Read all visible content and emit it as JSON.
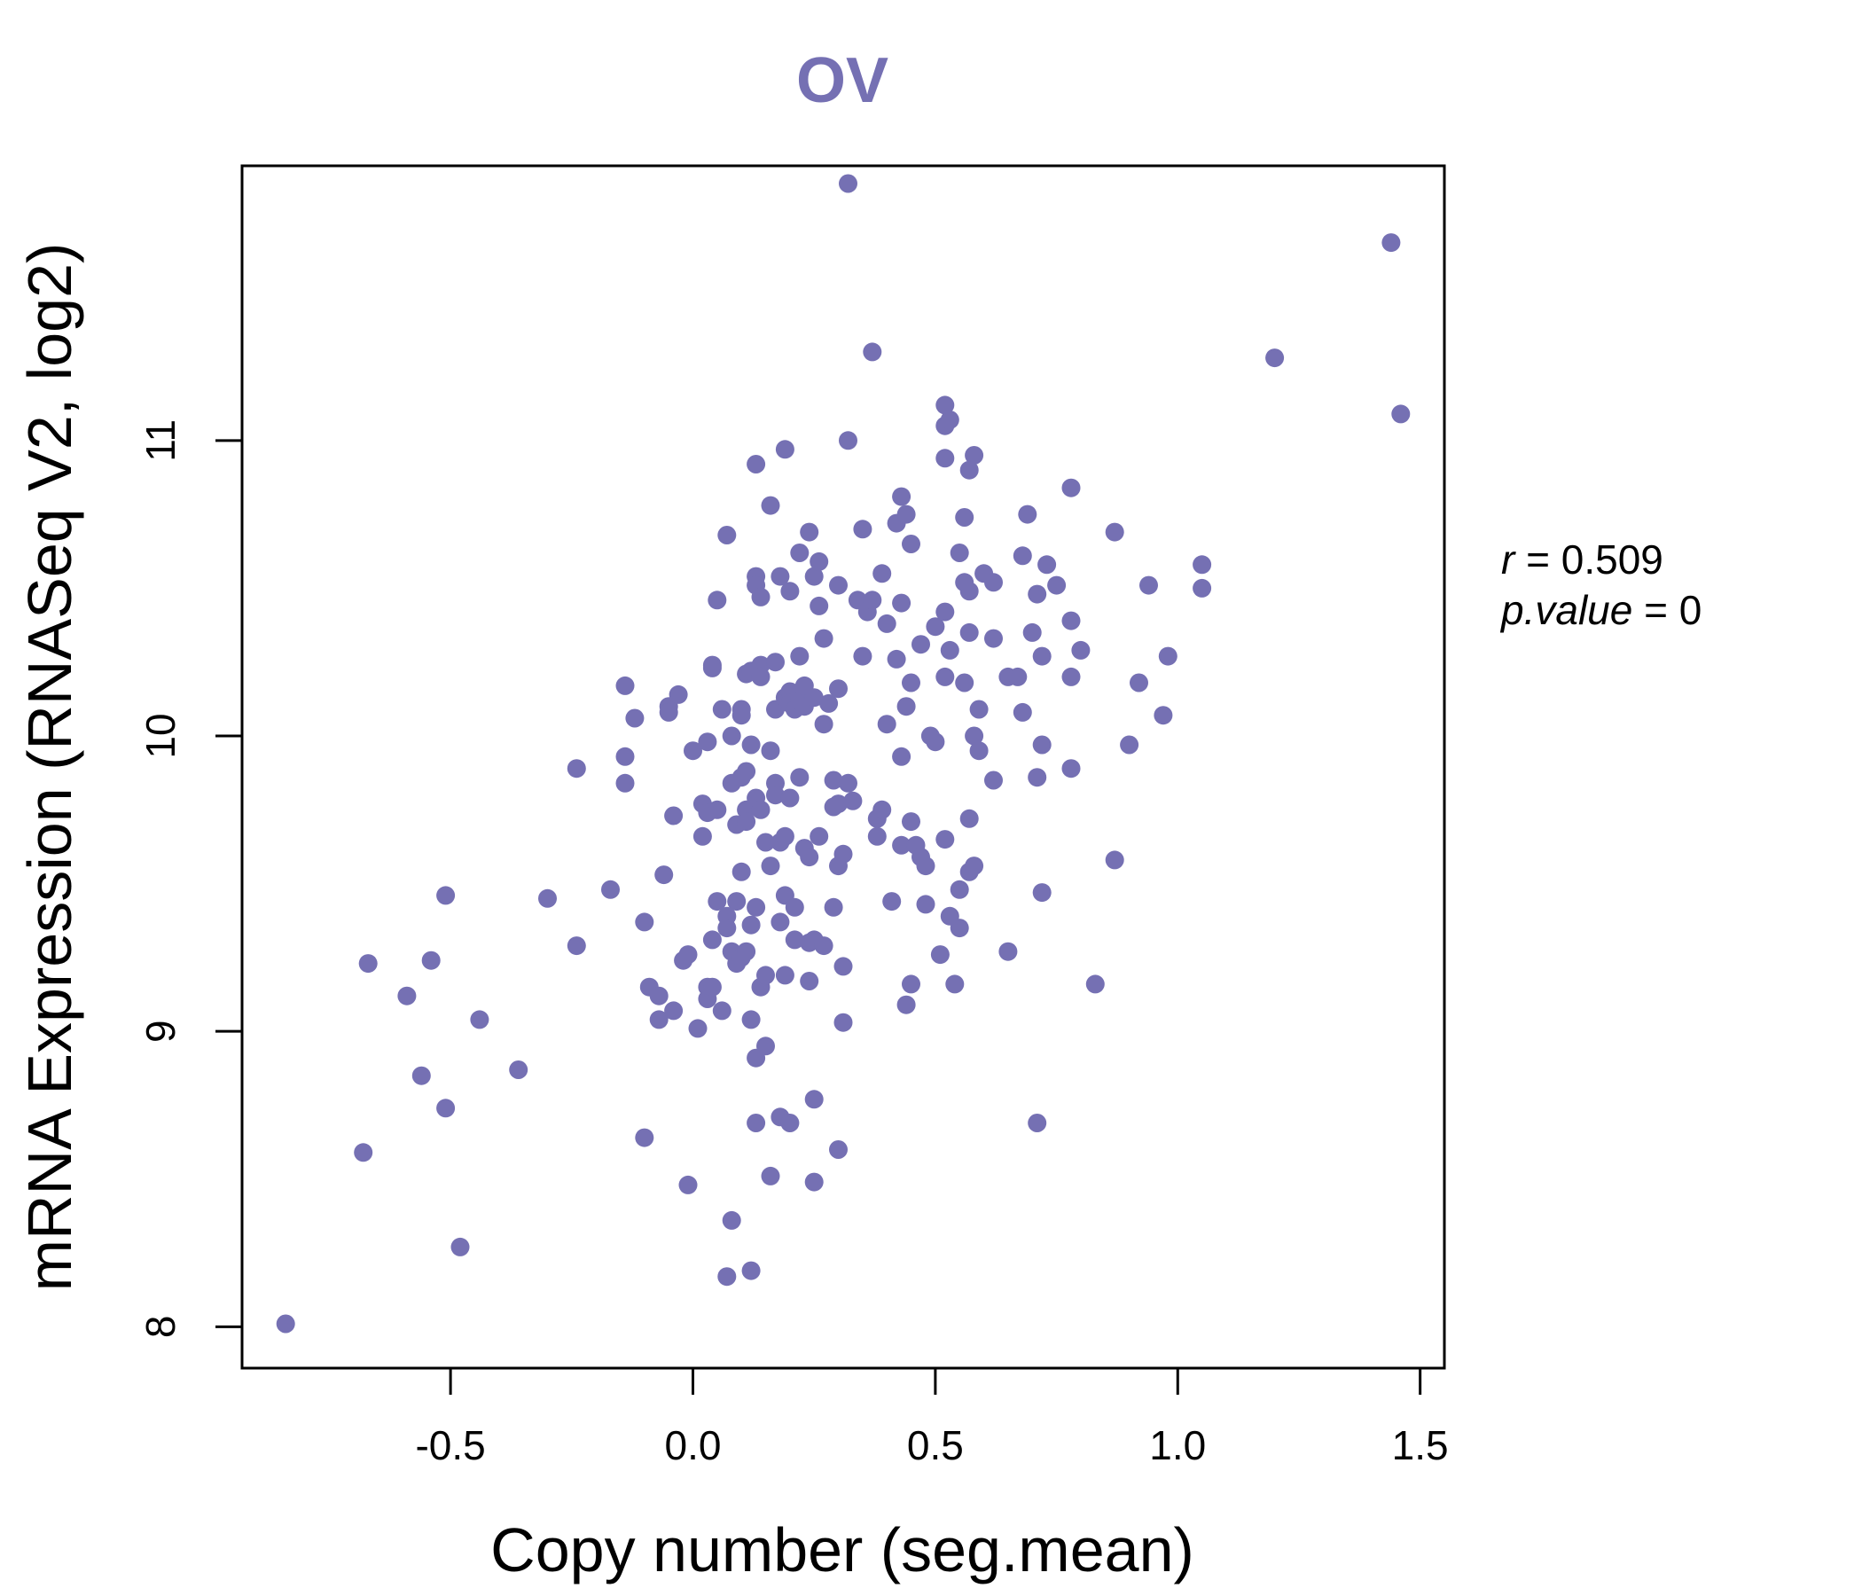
{
  "chart_data": {
    "type": "scatter",
    "title": "OV",
    "xlabel": "Copy number (seg.mean)",
    "ylabel": "mRNA Expression (RNASeq V2, log2)",
    "xlim": [
      -0.93,
      1.55
    ],
    "ylim": [
      7.86,
      11.93
    ],
    "x_ticks": [
      "-0.5",
      "0.0",
      "0.5",
      "1.0",
      "1.5"
    ],
    "x_tick_values": [
      -0.5,
      0.0,
      0.5,
      1.0,
      1.5
    ],
    "y_ticks": [
      "8",
      "9",
      "10",
      "11"
    ],
    "y_tick_values": [
      8,
      9,
      10,
      11
    ],
    "grid": false,
    "point_color": "#7570b3",
    "title_color": "#7570b3",
    "stats": {
      "r_label": "r",
      "r_value": "0.509",
      "p_label": "p.value",
      "p_value": "0"
    },
    "points": [
      [
        -0.84,
        8.01
      ],
      [
        -0.68,
        8.59
      ],
      [
        -0.67,
        9.23
      ],
      [
        -0.59,
        9.12
      ],
      [
        -0.56,
        8.85
      ],
      [
        -0.54,
        9.24
      ],
      [
        -0.51,
        9.46
      ],
      [
        -0.51,
        8.74
      ],
      [
        -0.48,
        8.27
      ],
      [
        -0.44,
        9.04
      ],
      [
        -0.36,
        8.87
      ],
      [
        -0.3,
        9.45
      ],
      [
        -0.24,
        9.89
      ],
      [
        -0.24,
        9.29
      ],
      [
        -0.17,
        9.48
      ],
      [
        -0.14,
        10.17
      ],
      [
        -0.14,
        9.93
      ],
      [
        -0.14,
        9.84
      ],
      [
        -0.12,
        10.06
      ],
      [
        -0.1,
        9.37
      ],
      [
        -0.1,
        8.64
      ],
      [
        -0.09,
        9.15
      ],
      [
        -0.07,
        9.12
      ],
      [
        -0.07,
        9.04
      ],
      [
        -0.06,
        9.53
      ],
      [
        -0.05,
        10.1
      ],
      [
        -0.05,
        10.08
      ],
      [
        -0.04,
        9.73
      ],
      [
        -0.04,
        9.07
      ],
      [
        -0.03,
        10.14
      ],
      [
        -0.02,
        9.24
      ],
      [
        -0.01,
        8.48
      ],
      [
        -0.01,
        9.26
      ],
      [
        0.01,
        9.01
      ],
      [
        0.0,
        9.95
      ],
      [
        0.02,
        9.77
      ],
      [
        0.02,
        9.66
      ],
      [
        0.03,
        9.98
      ],
      [
        0.03,
        9.74
      ],
      [
        0.03,
        9.15
      ],
      [
        0.03,
        9.11
      ],
      [
        0.04,
        10.24
      ],
      [
        0.04,
        10.23
      ],
      [
        0.04,
        9.31
      ],
      [
        0.04,
        9.15
      ],
      [
        0.05,
        10.46
      ],
      [
        0.05,
        9.75
      ],
      [
        0.05,
        9.44
      ],
      [
        0.06,
        10.09
      ],
      [
        0.06,
        9.07
      ],
      [
        0.07,
        10.68
      ],
      [
        0.07,
        9.39
      ],
      [
        0.07,
        9.35
      ],
      [
        0.07,
        8.17
      ],
      [
        0.08,
        10.0
      ],
      [
        0.08,
        9.84
      ],
      [
        0.08,
        9.27
      ],
      [
        0.08,
        8.36
      ],
      [
        0.09,
        9.7
      ],
      [
        0.09,
        9.44
      ],
      [
        0.09,
        9.23
      ],
      [
        0.1,
        10.09
      ],
      [
        0.1,
        10.07
      ],
      [
        0.1,
        9.86
      ],
      [
        0.1,
        9.54
      ],
      [
        0.1,
        9.25
      ],
      [
        0.11,
        10.21
      ],
      [
        0.11,
        9.88
      ],
      [
        0.11,
        9.75
      ],
      [
        0.11,
        9.71
      ],
      [
        0.11,
        9.27
      ],
      [
        0.12,
        10.22
      ],
      [
        0.12,
        9.97
      ],
      [
        0.12,
        9.36
      ],
      [
        0.12,
        9.04
      ],
      [
        0.12,
        8.19
      ],
      [
        0.13,
        10.54
      ],
      [
        0.13,
        10.51
      ],
      [
        0.13,
        10.92
      ],
      [
        0.13,
        9.79
      ],
      [
        0.13,
        9.42
      ],
      [
        0.13,
        8.91
      ],
      [
        0.13,
        8.69
      ],
      [
        0.14,
        10.47
      ],
      [
        0.14,
        10.24
      ],
      [
        0.14,
        10.2
      ],
      [
        0.14,
        9.75
      ],
      [
        0.14,
        9.15
      ],
      [
        0.15,
        9.64
      ],
      [
        0.15,
        9.19
      ],
      [
        0.15,
        8.95
      ],
      [
        0.16,
        10.78
      ],
      [
        0.16,
        9.95
      ],
      [
        0.16,
        9.56
      ],
      [
        0.16,
        8.51
      ],
      [
        0.17,
        10.25
      ],
      [
        0.17,
        10.09
      ],
      [
        0.17,
        9.84
      ],
      [
        0.17,
        9.8
      ],
      [
        0.18,
        10.54
      ],
      [
        0.18,
        9.64
      ],
      [
        0.18,
        9.37
      ],
      [
        0.18,
        8.71
      ],
      [
        0.19,
        10.97
      ],
      [
        0.19,
        10.13
      ],
      [
        0.19,
        9.66
      ],
      [
        0.19,
        9.46
      ],
      [
        0.19,
        9.19
      ],
      [
        0.2,
        10.49
      ],
      [
        0.2,
        10.15
      ],
      [
        0.2,
        10.11
      ],
      [
        0.2,
        9.79
      ],
      [
        0.2,
        8.69
      ],
      [
        0.21,
        10.09
      ],
      [
        0.21,
        9.42
      ],
      [
        0.21,
        9.31
      ],
      [
        0.22,
        10.62
      ],
      [
        0.22,
        10.27
      ],
      [
        0.22,
        10.12
      ],
      [
        0.22,
        9.86
      ],
      [
        0.23,
        10.17
      ],
      [
        0.23,
        10.1
      ],
      [
        0.23,
        9.62
      ],
      [
        0.24,
        10.69
      ],
      [
        0.24,
        9.59
      ],
      [
        0.24,
        9.3
      ],
      [
        0.24,
        9.17
      ],
      [
        0.25,
        10.54
      ],
      [
        0.25,
        10.13
      ],
      [
        0.25,
        9.31
      ],
      [
        0.25,
        8.77
      ],
      [
        0.25,
        8.49
      ],
      [
        0.26,
        10.59
      ],
      [
        0.26,
        10.44
      ],
      [
        0.26,
        9.66
      ],
      [
        0.27,
        10.33
      ],
      [
        0.27,
        10.04
      ],
      [
        0.27,
        9.29
      ],
      [
        0.28,
        10.11
      ],
      [
        0.29,
        9.85
      ],
      [
        0.29,
        9.76
      ],
      [
        0.29,
        9.42
      ],
      [
        0.3,
        10.51
      ],
      [
        0.3,
        10.16
      ],
      [
        0.3,
        9.77
      ],
      [
        0.3,
        9.56
      ],
      [
        0.3,
        8.6
      ],
      [
        0.31,
        9.6
      ],
      [
        0.31,
        9.22
      ],
      [
        0.31,
        9.03
      ],
      [
        0.32,
        11.87
      ],
      [
        0.32,
        11.0
      ],
      [
        0.32,
        9.84
      ],
      [
        0.33,
        9.78
      ],
      [
        0.34,
        10.46
      ],
      [
        0.35,
        10.7
      ],
      [
        0.35,
        10.27
      ],
      [
        0.36,
        10.42
      ],
      [
        0.37,
        10.46
      ],
      [
        0.37,
        11.3
      ],
      [
        0.38,
        9.72
      ],
      [
        0.38,
        9.66
      ],
      [
        0.39,
        10.55
      ],
      [
        0.39,
        9.75
      ],
      [
        0.4,
        10.38
      ],
      [
        0.4,
        10.04
      ],
      [
        0.41,
        9.44
      ],
      [
        0.42,
        10.72
      ],
      [
        0.42,
        10.26
      ],
      [
        0.43,
        10.81
      ],
      [
        0.43,
        10.45
      ],
      [
        0.43,
        9.93
      ],
      [
        0.43,
        9.63
      ],
      [
        0.44,
        10.75
      ],
      [
        0.44,
        10.1
      ],
      [
        0.44,
        9.09
      ],
      [
        0.45,
        10.65
      ],
      [
        0.45,
        10.18
      ],
      [
        0.45,
        9.71
      ],
      [
        0.45,
        9.16
      ],
      [
        0.46,
        9.63
      ],
      [
        0.47,
        10.31
      ],
      [
        0.47,
        9.59
      ],
      [
        0.48,
        9.43
      ],
      [
        0.48,
        9.56
      ],
      [
        0.49,
        10.0
      ],
      [
        0.5,
        10.37
      ],
      [
        0.5,
        9.98
      ],
      [
        0.51,
        9.26
      ],
      [
        0.52,
        11.12
      ],
      [
        0.52,
        11.05
      ],
      [
        0.52,
        10.94
      ],
      [
        0.52,
        10.42
      ],
      [
        0.52,
        10.2
      ],
      [
        0.52,
        9.65
      ],
      [
        0.53,
        11.07
      ],
      [
        0.53,
        10.29
      ],
      [
        0.53,
        9.39
      ],
      [
        0.54,
        9.16
      ],
      [
        0.55,
        10.62
      ],
      [
        0.55,
        9.48
      ],
      [
        0.55,
        9.35
      ],
      [
        0.56,
        10.74
      ],
      [
        0.56,
        10.52
      ],
      [
        0.56,
        10.18
      ],
      [
        0.57,
        10.49
      ],
      [
        0.57,
        10.35
      ],
      [
        0.57,
        10.9
      ],
      [
        0.57,
        9.72
      ],
      [
        0.57,
        9.54
      ],
      [
        0.58,
        10.95
      ],
      [
        0.58,
        10.0
      ],
      [
        0.58,
        9.56
      ],
      [
        0.59,
        10.09
      ],
      [
        0.59,
        9.95
      ],
      [
        0.6,
        10.55
      ],
      [
        0.62,
        10.52
      ],
      [
        0.62,
        10.33
      ],
      [
        0.62,
        9.85
      ],
      [
        0.65,
        10.2
      ],
      [
        0.65,
        9.27
      ],
      [
        0.67,
        10.2
      ],
      [
        0.68,
        10.61
      ],
      [
        0.68,
        10.08
      ],
      [
        0.69,
        10.75
      ],
      [
        0.7,
        10.35
      ],
      [
        0.71,
        10.48
      ],
      [
        0.71,
        9.86
      ],
      [
        0.71,
        8.69
      ],
      [
        0.72,
        10.27
      ],
      [
        0.72,
        9.97
      ],
      [
        0.72,
        9.47
      ],
      [
        0.73,
        10.58
      ],
      [
        0.75,
        10.51
      ],
      [
        0.78,
        10.84
      ],
      [
        0.78,
        10.39
      ],
      [
        0.78,
        10.2
      ],
      [
        0.78,
        9.89
      ],
      [
        0.8,
        10.29
      ],
      [
        0.83,
        9.16
      ],
      [
        0.87,
        10.69
      ],
      [
        0.87,
        9.58
      ],
      [
        0.9,
        9.97
      ],
      [
        0.92,
        10.18
      ],
      [
        0.94,
        10.51
      ],
      [
        0.97,
        10.07
      ],
      [
        0.98,
        10.27
      ],
      [
        1.05,
        10.58
      ],
      [
        1.05,
        10.5
      ],
      [
        1.2,
        11.28
      ],
      [
        1.44,
        11.67
      ],
      [
        1.46,
        11.09
      ]
    ]
  }
}
